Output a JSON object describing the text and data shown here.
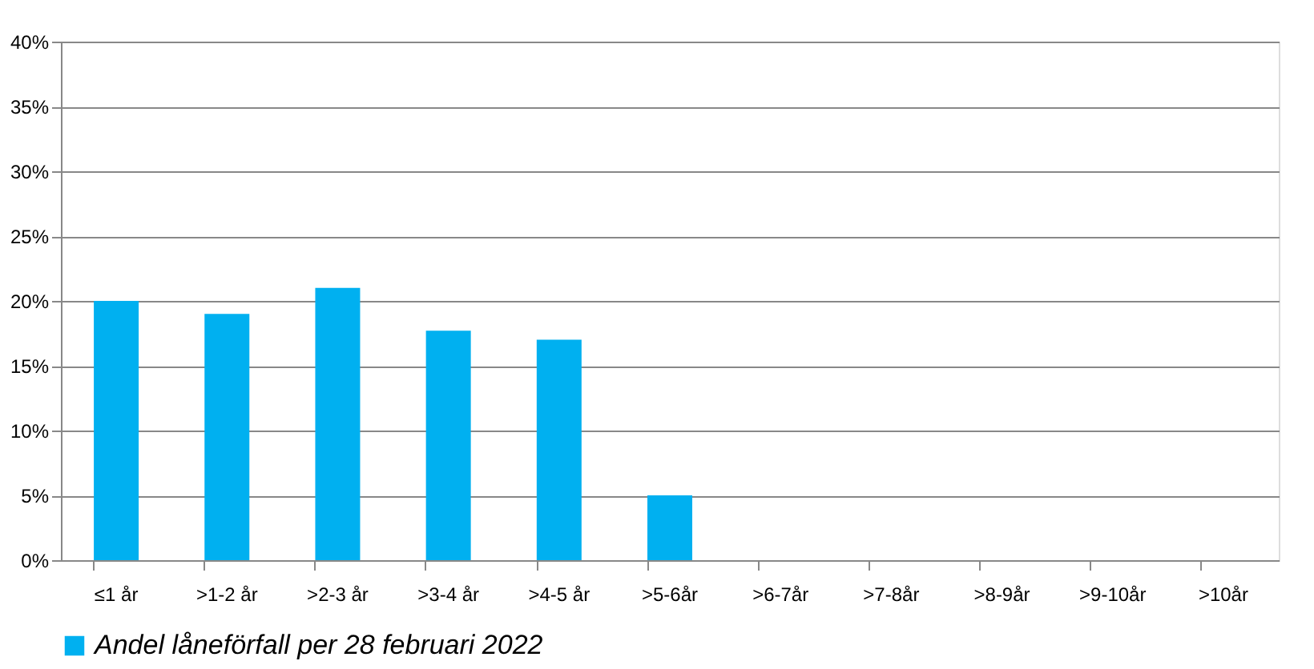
{
  "chart_data": {
    "type": "bar",
    "categories": [
      "≤1 år",
      ">1-2 år",
      ">2-3 år",
      ">3-4 år",
      ">4-5 år",
      ">5-6år",
      ">6-7år",
      ">7-8år",
      ">8-9år",
      ">9-10år",
      ">10år"
    ],
    "series": [
      {
        "name": "Andel låneförfall per 28 februari 2022",
        "color": "#00b0f0",
        "values": [
          20,
          19,
          21,
          17.7,
          17,
          5,
          0,
          0,
          0,
          0,
          0
        ]
      }
    ],
    "ylim": [
      0,
      40
    ],
    "yticks": [
      {
        "value": 0,
        "label": "0%"
      },
      {
        "value": 5,
        "label": "5%"
      },
      {
        "value": 10,
        "label": "10%"
      },
      {
        "value": 15,
        "label": "15%"
      },
      {
        "value": 20,
        "label": "20%"
      },
      {
        "value": 25,
        "label": "25%"
      },
      {
        "value": 30,
        "label": "30%"
      },
      {
        "value": 35,
        "label": "35%"
      },
      {
        "value": 40,
        "label": "40%"
      }
    ],
    "grid": "y",
    "legend": "bottom"
  }
}
